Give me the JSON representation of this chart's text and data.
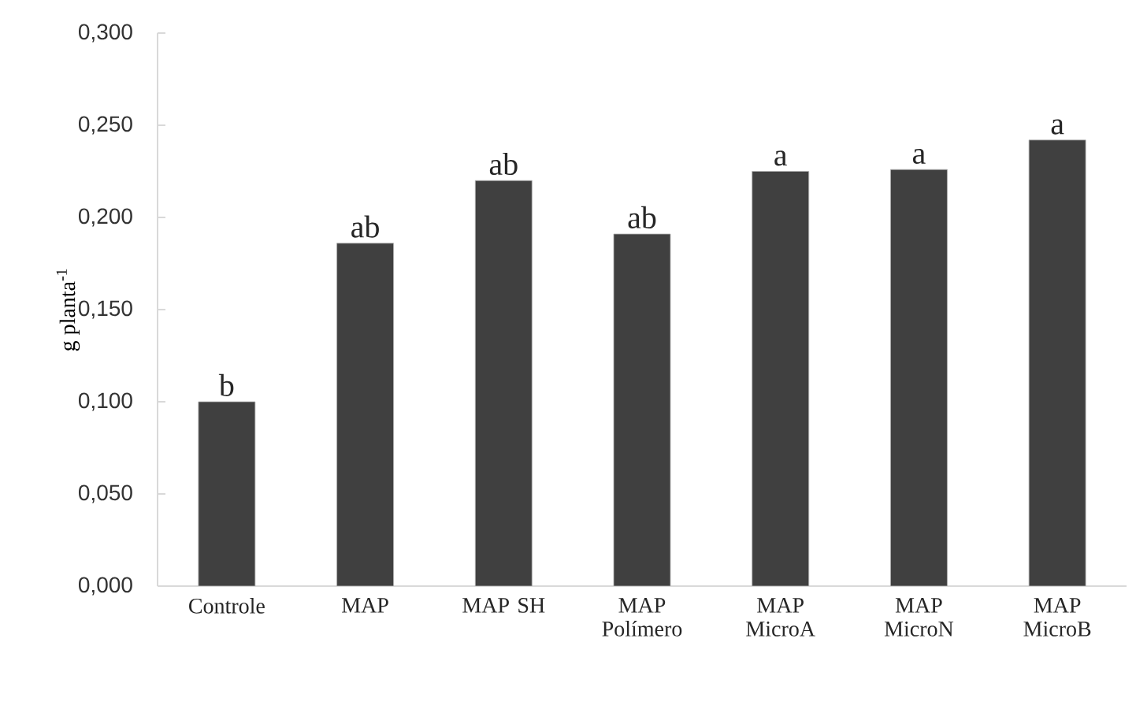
{
  "chart_data": {
    "type": "bar",
    "ylabel": "g planta$^{-1}$",
    "categories": [
      "Controle",
      "MAP",
      "MAP SH",
      "MAP Polímero",
      "MAP MicroA",
      "MAP MicroN",
      "MAP MicroB"
    ],
    "values": [
      0.1,
      0.186,
      0.22,
      0.191,
      0.225,
      0.226,
      0.242
    ],
    "color": "#404040",
    "ylim": [
      0,
      0.3
    ],
    "yticks": [
      {
        "value": 0,
        "label": "0,000"
      },
      {
        "value": 0.05,
        "label": "0,050"
      },
      {
        "value": 0.1,
        "label": "0,100"
      },
      {
        "value": 0.15,
        "label": "0,150"
      },
      {
        "value": 0.2,
        "label": "0,200"
      },
      {
        "value": 0.25,
        "label": "0,250"
      },
      {
        "value": 0.3,
        "label": "0,300"
      }
    ],
    "grid": false,
    "annotations": [
      {
        "text": "b",
        "x": "Controle",
        "y": 0.1
      },
      {
        "text": "ab",
        "x": "MAP",
        "y": 0.186
      },
      {
        "text": "ab",
        "x": "MAP SH",
        "y": 0.22
      },
      {
        "text": "ab",
        "x": "MAP Polímero",
        "y": 0.191
      },
      {
        "text": "a",
        "x": "MAP MicroA",
        "y": 0.225
      },
      {
        "text": "a",
        "x": "MAP MicroN",
        "y": 0.226
      },
      {
        "text": "a",
        "x": "MAP MicroB",
        "y": 0.242
      }
    ]
  }
}
